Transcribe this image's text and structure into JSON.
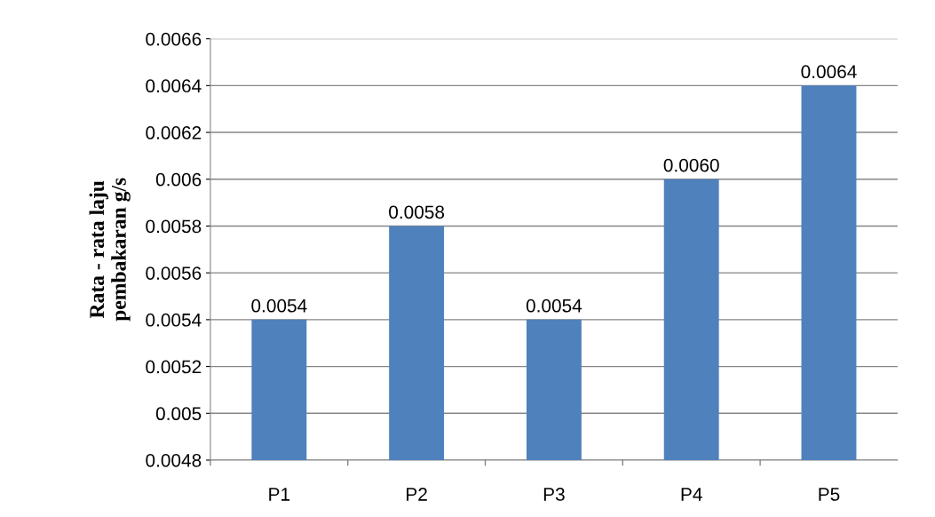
{
  "chart_data": {
    "type": "bar",
    "ylabel": "Rata - rata laju\npembakaran g/s",
    "categories": [
      "P1",
      "P2",
      "P3",
      "P4",
      "P5"
    ],
    "values": [
      0.0054,
      0.0058,
      0.0054,
      0.006,
      0.0064
    ],
    "color": "#4f81bd",
    "value_labels": [
      "0.0054",
      "0.0058",
      "0.0054",
      "0.0060",
      "0.0064"
    ],
    "ylim": [
      0.0048,
      0.0066
    ],
    "yticks": [
      0.0048,
      0.005,
      0.0052,
      0.0054,
      0.0056,
      0.0058,
      0.006,
      0.0062,
      0.0064,
      0.0066
    ],
    "grid": "y",
    "legend": false
  }
}
